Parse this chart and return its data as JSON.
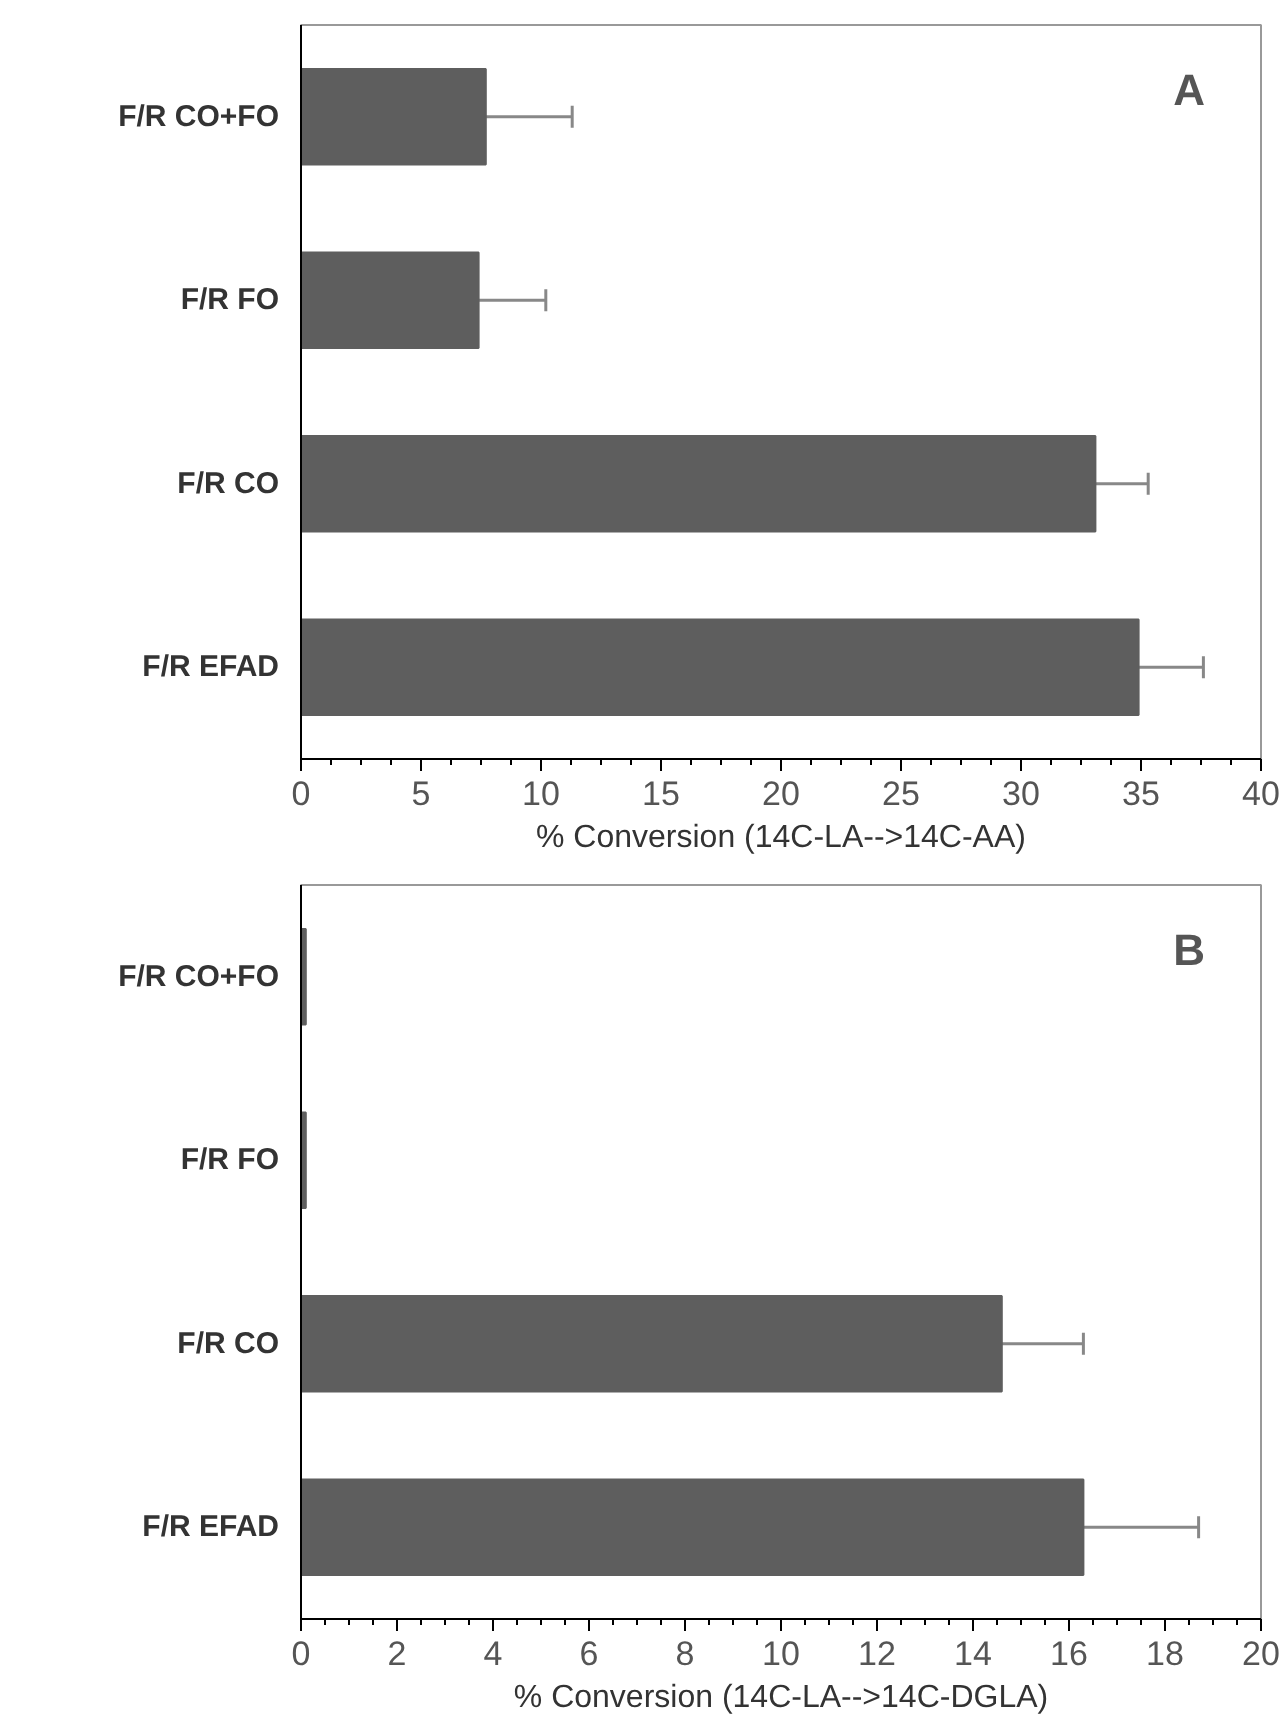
{
  "chart_data": [
    {
      "type": "bar",
      "orientation": "horizontal",
      "categories": [
        "F/R CO+FO",
        "F/R FO",
        "F/R CO",
        "F/R EFAD"
      ],
      "values": [
        7.7,
        7.4,
        33.1,
        34.9
      ],
      "errors": [
        3.6,
        2.8,
        2.2,
        2.7
      ],
      "color": "#5e5e5e",
      "xlabel": "% Conversion (14C-LA-->14C-AA)",
      "xlim": [
        0,
        40
      ],
      "xticks": [
        0,
        5,
        10,
        15,
        20,
        25,
        30,
        35,
        40
      ],
      "annotations": [
        "A"
      ]
    },
    {
      "type": "bar",
      "orientation": "horizontal",
      "categories": [
        "F/R CO+FO",
        "F/R FO",
        "F/R CO",
        "F/R EFAD"
      ],
      "values": [
        0.1,
        0.1,
        14.6,
        16.3
      ],
      "errors": [
        null,
        null,
        1.7,
        2.4
      ],
      "color": "#5e5e5e",
      "xlabel": "% Conversion (14C-LA-->14C-DGLA)",
      "xlim": [
        0,
        20
      ],
      "xticks": [
        0,
        2,
        4,
        6,
        8,
        10,
        12,
        14,
        16,
        18,
        20
      ],
      "annotations": [
        "B"
      ]
    }
  ]
}
